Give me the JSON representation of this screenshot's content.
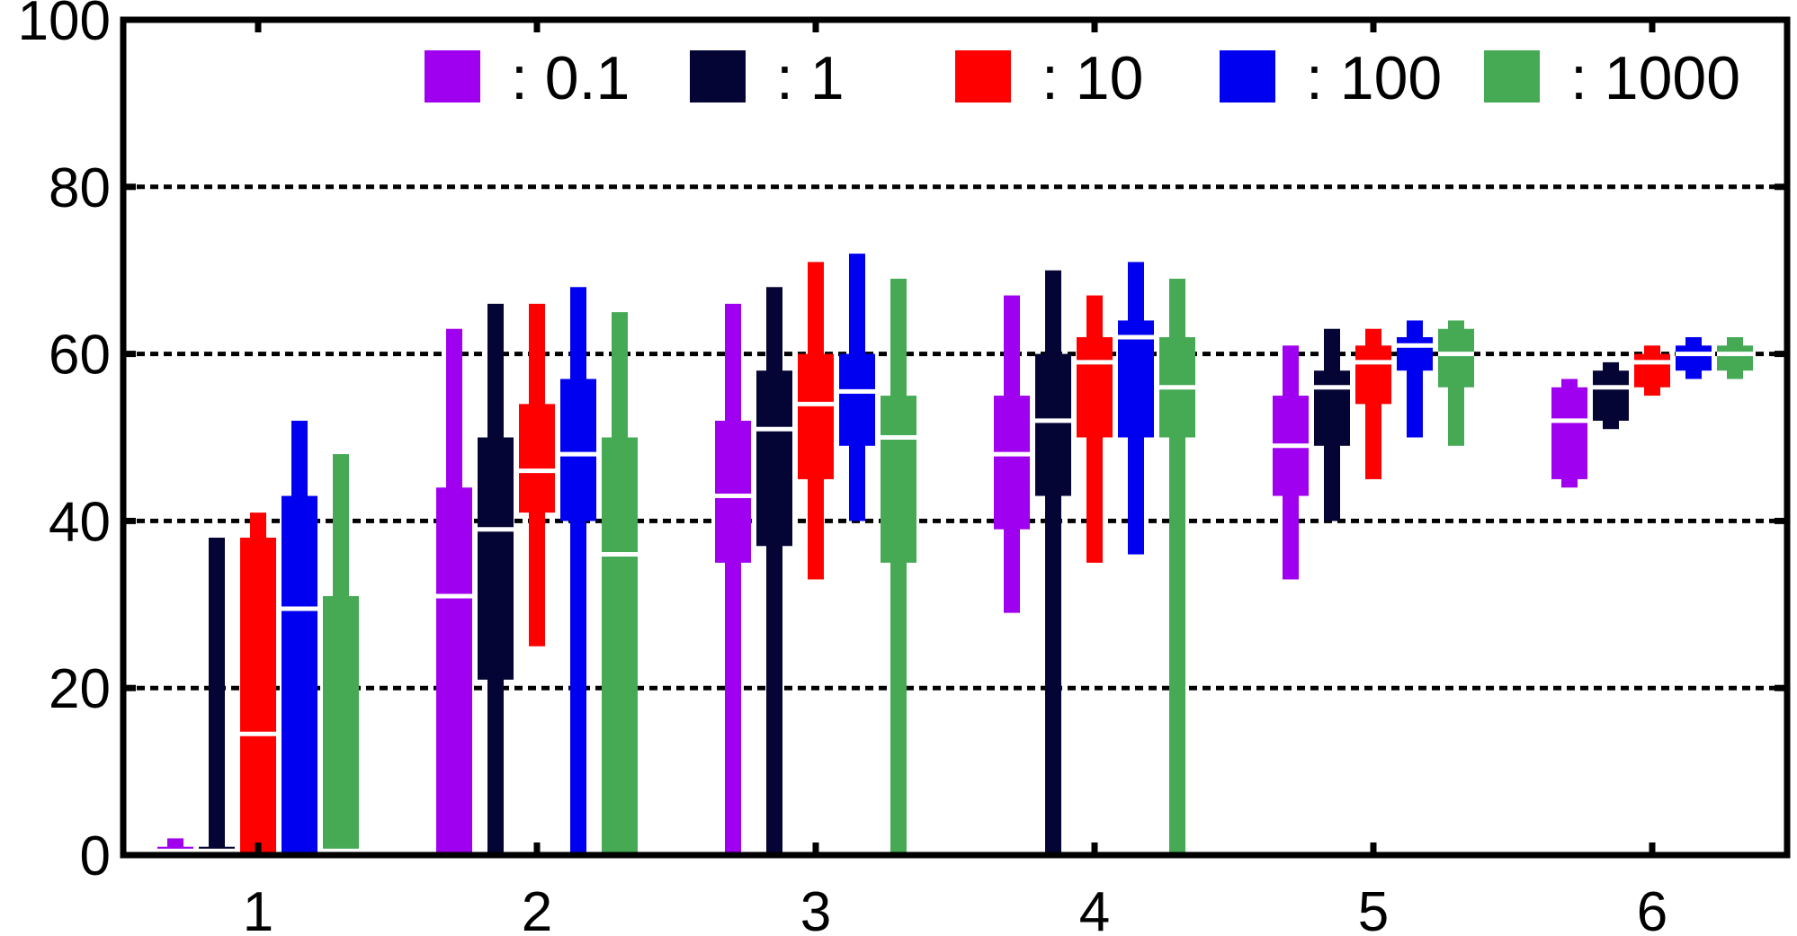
{
  "chart_data": {
    "type": "box",
    "categories": [
      "1",
      "2",
      "3",
      "4",
      "5",
      "6"
    ],
    "ylim": [
      0,
      100
    ],
    "yticks": [
      0,
      20,
      40,
      60,
      80,
      100
    ],
    "grid": true,
    "grid_values": [
      20,
      40,
      60,
      80
    ],
    "legend_position": "top-right",
    "series": [
      {
        "name": ": 0.1",
        "color": "#a000f0",
        "boxes": [
          {
            "min": 0,
            "q1": 0,
            "median": 0.5,
            "q3": 1,
            "max": 2
          },
          {
            "min": 0,
            "q1": 0,
            "median": 31,
            "q3": 44,
            "max": 63
          },
          {
            "min": 0,
            "q1": 35,
            "median": 43,
            "q3": 52,
            "max": 66
          },
          {
            "min": 29,
            "q1": 39,
            "median": 48,
            "q3": 55,
            "max": 67
          },
          {
            "min": 33,
            "q1": 43,
            "median": 49,
            "q3": 55,
            "max": 61
          },
          {
            "min": 44,
            "q1": 45,
            "median": 52,
            "q3": 56,
            "max": 57
          }
        ]
      },
      {
        "name": ": 1",
        "color": "#050535",
        "boxes": [
          {
            "min": 0,
            "q1": 0,
            "median": 0.5,
            "q3": 1,
            "max": 38
          },
          {
            "min": 0,
            "q1": 21,
            "median": 39,
            "q3": 50,
            "max": 66
          },
          {
            "min": 0,
            "q1": 37,
            "median": 51,
            "q3": 58,
            "max": 68
          },
          {
            "min": 0,
            "q1": 43,
            "median": 52,
            "q3": 60,
            "max": 70
          },
          {
            "min": 40,
            "q1": 49,
            "median": 56,
            "q3": 58,
            "max": 63
          },
          {
            "min": 51,
            "q1": 52,
            "median": 56,
            "q3": 58,
            "max": 59
          }
        ]
      },
      {
        "name": ": 10",
        "color": "#ff0000",
        "boxes": [
          {
            "min": 0,
            "q1": 0,
            "median": 14.5,
            "q3": 38,
            "max": 41
          },
          {
            "min": 25,
            "q1": 41,
            "median": 46,
            "q3": 54,
            "max": 66
          },
          {
            "min": 33,
            "q1": 45,
            "median": 54,
            "q3": 60,
            "max": 71
          },
          {
            "min": 35,
            "q1": 50,
            "median": 59,
            "q3": 62,
            "max": 67
          },
          {
            "min": 45,
            "q1": 54,
            "median": 59,
            "q3": 61,
            "max": 63
          },
          {
            "min": 55,
            "q1": 56,
            "median": 59,
            "q3": 60,
            "max": 61
          }
        ]
      },
      {
        "name": ": 100",
        "color": "#0000f0",
        "boxes": [
          {
            "min": 0,
            "q1": 0,
            "median": 29.5,
            "q3": 43,
            "max": 52
          },
          {
            "min": 0,
            "q1": 40,
            "median": 48,
            "q3": 57,
            "max": 68
          },
          {
            "min": 40,
            "q1": 49,
            "median": 55.5,
            "q3": 60,
            "max": 72
          },
          {
            "min": 36,
            "q1": 50,
            "median": 62,
            "q3": 64,
            "max": 71
          },
          {
            "min": 50,
            "q1": 58,
            "median": 61,
            "q3": 62,
            "max": 64
          },
          {
            "min": 57,
            "q1": 58,
            "median": 60,
            "q3": 61,
            "max": 62
          }
        ]
      },
      {
        "name": ": 1000",
        "color": "#46aa55",
        "boxes": [
          {
            "min": 0,
            "q1": 0,
            "median": 0.5,
            "q3": 31,
            "max": 48
          },
          {
            "min": 0,
            "q1": 0,
            "median": 36,
            "q3": 50,
            "max": 65
          },
          {
            "min": 0,
            "q1": 35,
            "median": 50,
            "q3": 55,
            "max": 69
          },
          {
            "min": 0,
            "q1": 50,
            "median": 56,
            "q3": 62,
            "max": 69
          },
          {
            "min": 49,
            "q1": 56,
            "median": 60,
            "q3": 63,
            "max": 64
          },
          {
            "min": 57,
            "q1": 58,
            "median": 60,
            "q3": 61,
            "max": 62
          }
        ]
      }
    ]
  }
}
